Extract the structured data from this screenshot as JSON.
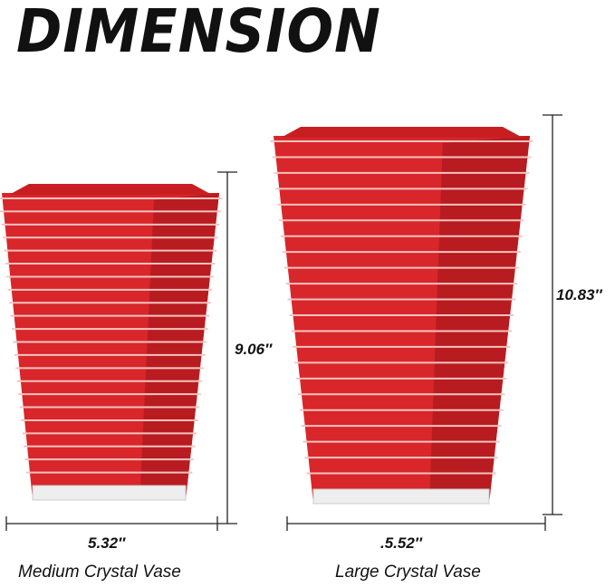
{
  "title": "DIMENSION",
  "vase_color": "#d8262a",
  "products": [
    {
      "name": "Medium Crystal Vase",
      "height": "9.06′′",
      "width": "5.32′′"
    },
    {
      "name": "Large Crystal Vase",
      "height": "10.83′′",
      "width": ".5.52′′"
    }
  ]
}
